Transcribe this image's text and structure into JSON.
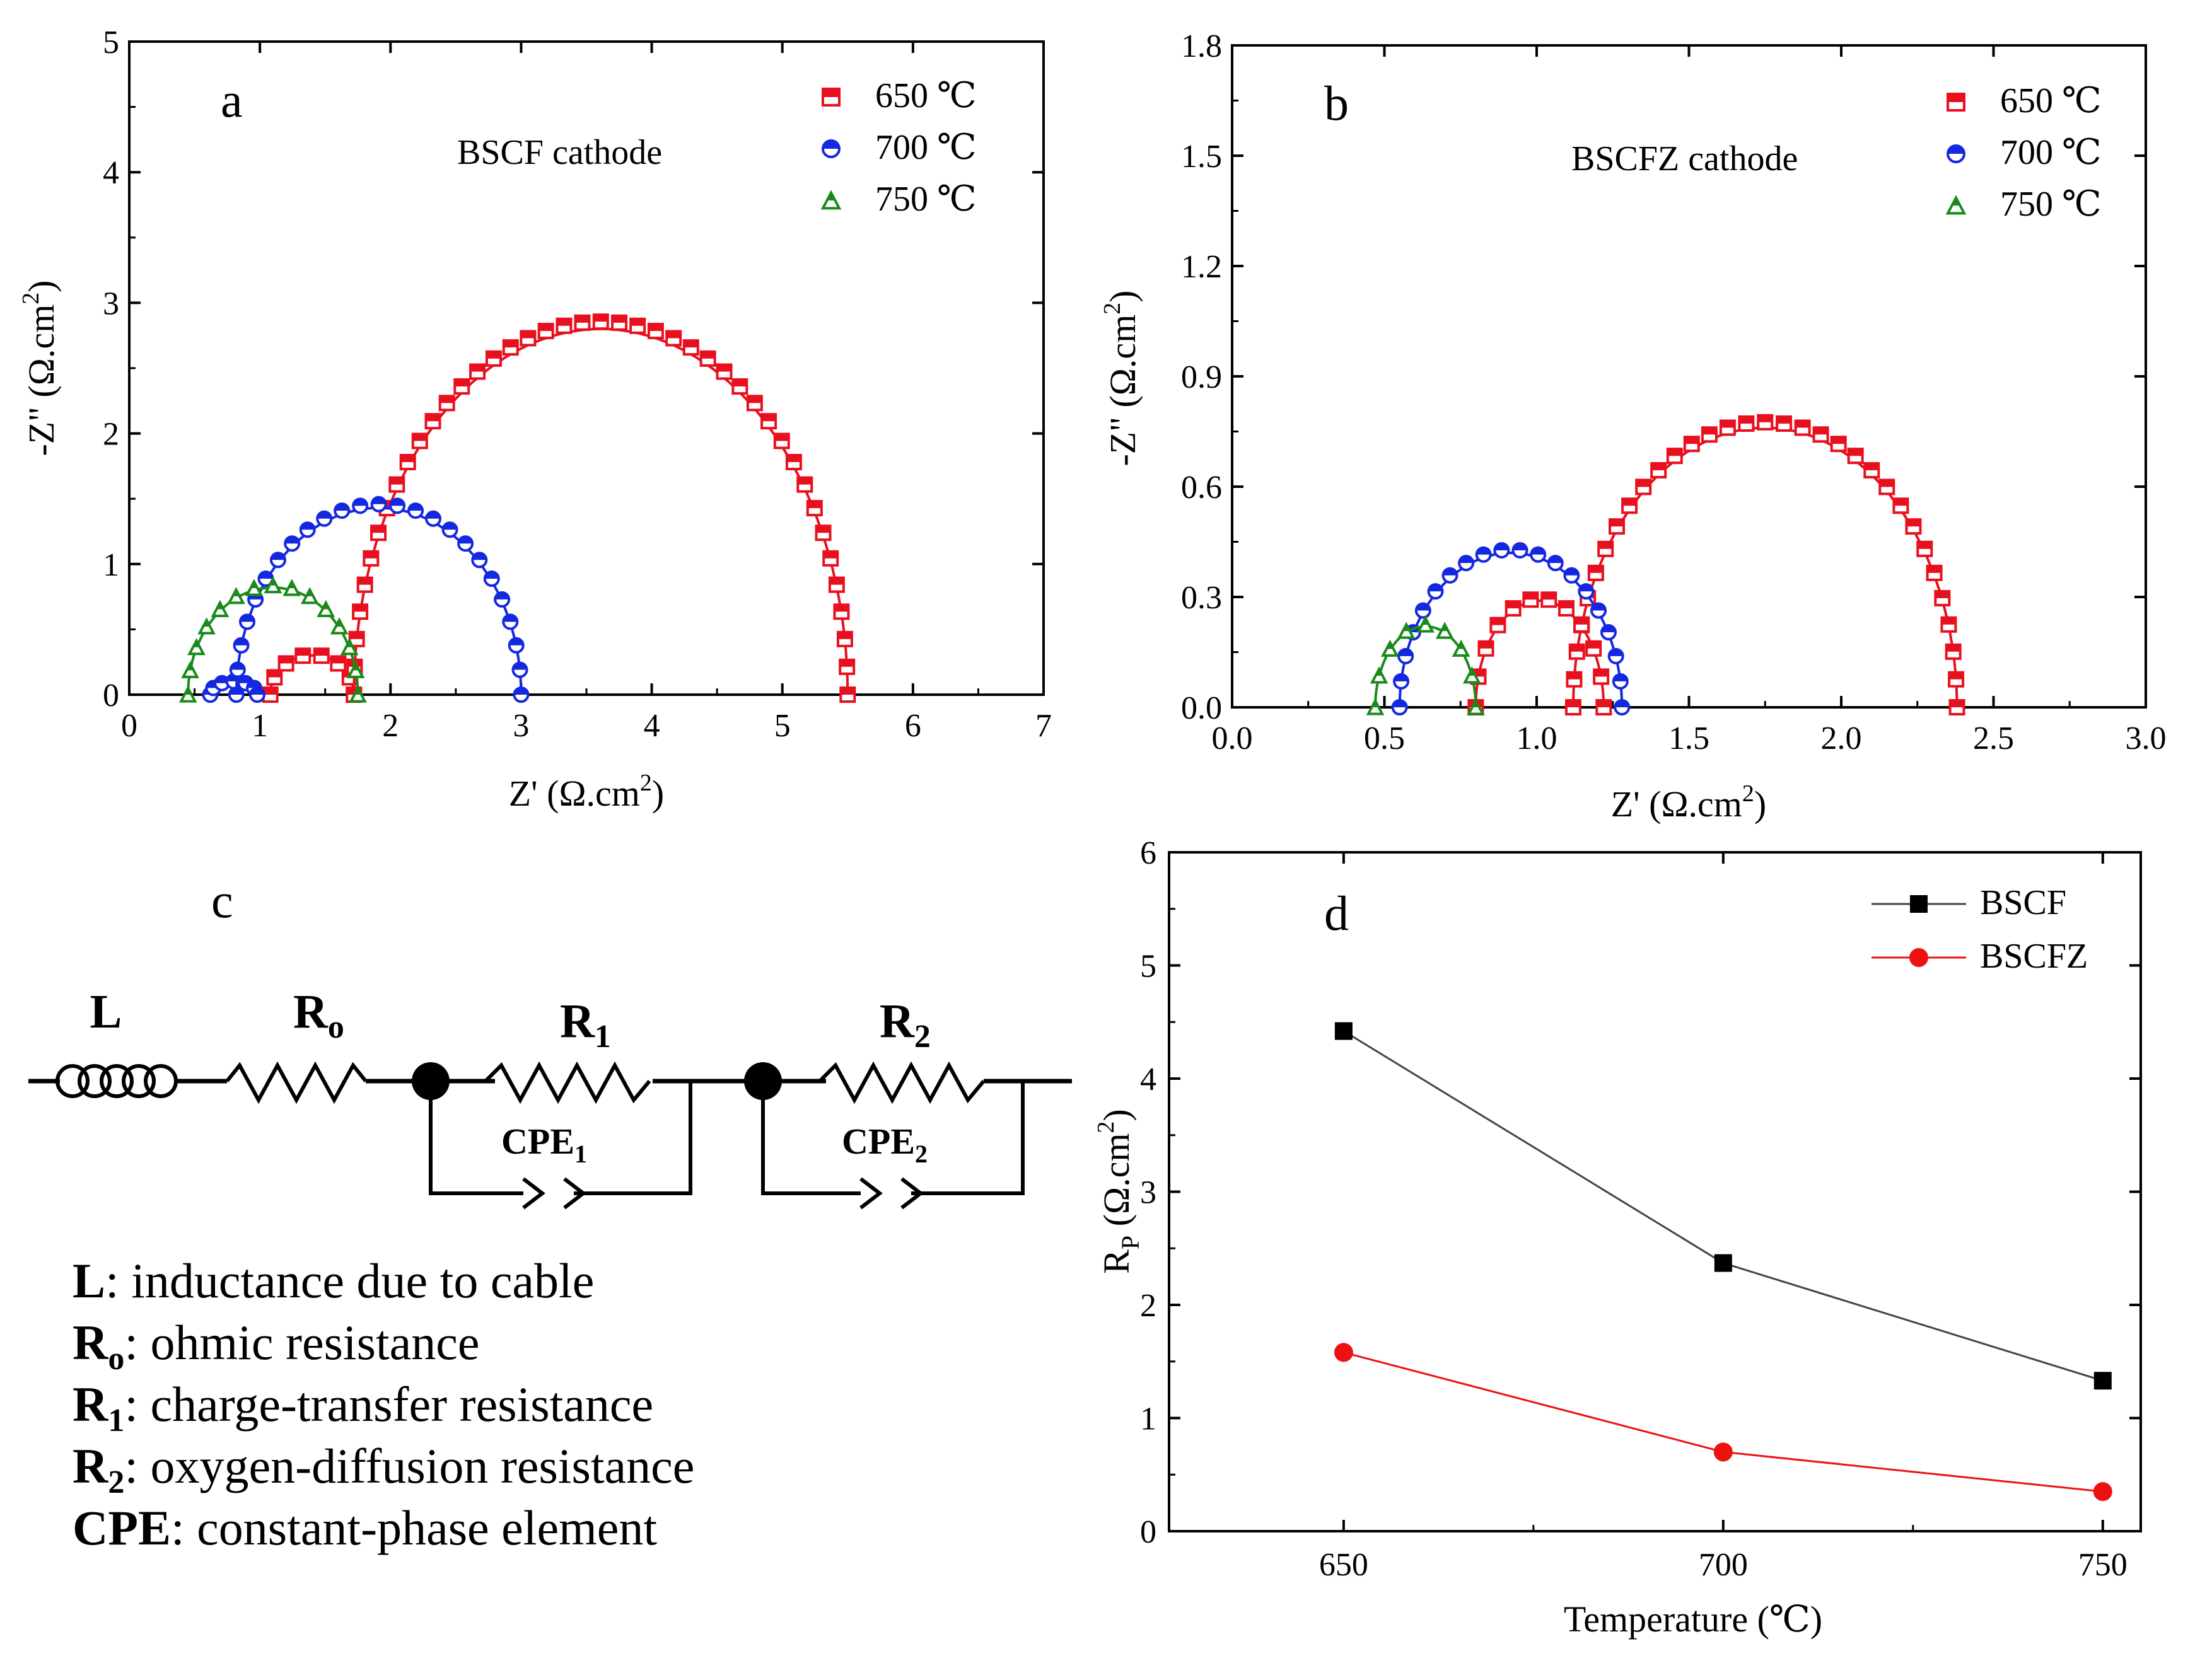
{
  "panel_a": {
    "label": "a",
    "annotation": "BSCF cathode",
    "chart_data": {
      "type": "scatter",
      "xlabel": "Z' (Ω.cm",
      "ylabel": "-Z\" (Ω.cm",
      "xlim": [
        0,
        7
      ],
      "ylim": [
        0,
        5
      ],
      "xticks": [
        "0",
        "1",
        "2",
        "3",
        "4",
        "5",
        "6",
        "7"
      ],
      "yticks": [
        "0",
        "1",
        "2",
        "3",
        "4",
        "5"
      ],
      "legend_position": "top-right",
      "series": [
        {
          "name": "650 ℃",
          "color": "#e8101e",
          "marker": "square",
          "arcs": [
            {
              "start": 1.08,
              "end": 1.72,
              "peak": 0.3
            },
            {
              "start": 1.72,
              "end": 5.5,
              "peak": 2.8
            }
          ]
        },
        {
          "name": "700 ℃",
          "color": "#1428e0",
          "marker": "circle",
          "arcs": [
            {
              "start": 0.62,
              "end": 0.98,
              "peak": 0.1
            },
            {
              "start": 0.82,
              "end": 3.0,
              "peak": 1.43
            }
          ]
        },
        {
          "name": "750 ℃",
          "color": "#1a8a1a",
          "marker": "triangle",
          "arcs": [
            {
              "start": 0.45,
              "end": 1.75,
              "peak": 0.82
            }
          ]
        }
      ]
    }
  },
  "panel_b": {
    "label": "b",
    "annotation": "BSCFZ cathode",
    "chart_data": {
      "type": "scatter",
      "xlabel": "Z' (Ω.cm",
      "ylabel": "-Z\" (Ω.cm",
      "xlim": [
        0,
        3.0
      ],
      "ylim": [
        0,
        1.8
      ],
      "xticks": [
        "0.0",
        "0.5",
        "1.0",
        "1.5",
        "2.0",
        "2.5",
        "3.0"
      ],
      "yticks": [
        "0.0",
        "0.3",
        "0.6",
        "0.9",
        "1.2",
        "1.5",
        "1.8"
      ],
      "legend_position": "top-right",
      "series": [
        {
          "name": "650 ℃",
          "color": "#e8101e",
          "marker": "square",
          "arcs": [
            {
              "start": 0.8,
              "end": 1.22,
              "peak": 0.29
            },
            {
              "start": 1.12,
              "end": 2.38,
              "peak": 0.76
            }
          ]
        },
        {
          "name": "700 ℃",
          "color": "#1428e0",
          "marker": "circle",
          "arcs": [
            {
              "start": 0.55,
              "end": 1.28,
              "peak": 0.42
            }
          ]
        },
        {
          "name": "750 ℃",
          "color": "#1a8a1a",
          "marker": "triangle",
          "arcs": [
            {
              "start": 0.47,
              "end": 0.8,
              "peak": 0.22
            }
          ]
        }
      ]
    }
  },
  "panel_c": {
    "label": "c",
    "circuit_labels": {
      "L": "L",
      "Ro": "R",
      "Ro_sub": "o",
      "R1": "R",
      "R1_sub": "1",
      "R2": "R",
      "R2_sub": "2",
      "CPE1": "CPE",
      "CPE1_sub": "1",
      "CPE2": "CPE",
      "CPE2_sub": "2"
    },
    "legend": [
      {
        "symbol": "L",
        "sub": "",
        "text": ": inductance due to cable"
      },
      {
        "symbol": "R",
        "sub": "o",
        "text": ": ohmic resistance"
      },
      {
        "symbol": "R",
        "sub": "1",
        "text": ": charge-transfer resistance"
      },
      {
        "symbol": "R",
        "sub": "2",
        "text": ": oxygen-diffusion resistance"
      },
      {
        "symbol": "CPE",
        "sub": "",
        "text": ": constant-phase element"
      }
    ]
  },
  "panel_d": {
    "label": "d",
    "chart_data": {
      "type": "line",
      "xlabel": "Temperature (℃)",
      "ylabel_main": "R",
      "ylabel_sub": "P",
      "ylabel_unit": " (Ω.cm",
      "x": [
        650,
        700,
        750
      ],
      "xticks": [
        "650",
        "700",
        "750"
      ],
      "xlim": [
        627,
        755
      ],
      "ylim": [
        0,
        6
      ],
      "yticks": [
        "0",
        "1",
        "2",
        "3",
        "4",
        "5",
        "6"
      ],
      "legend_position": "top-right",
      "series": [
        {
          "name": "BSCF",
          "color": "#000000",
          "line_color": "#444444",
          "marker": "square",
          "values": [
            4.42,
            2.37,
            1.33
          ]
        },
        {
          "name": "BSCFZ",
          "color": "#ee1111",
          "line_color": "#ee1111",
          "marker": "circle",
          "values": [
            1.58,
            0.7,
            0.35
          ]
        }
      ]
    }
  }
}
